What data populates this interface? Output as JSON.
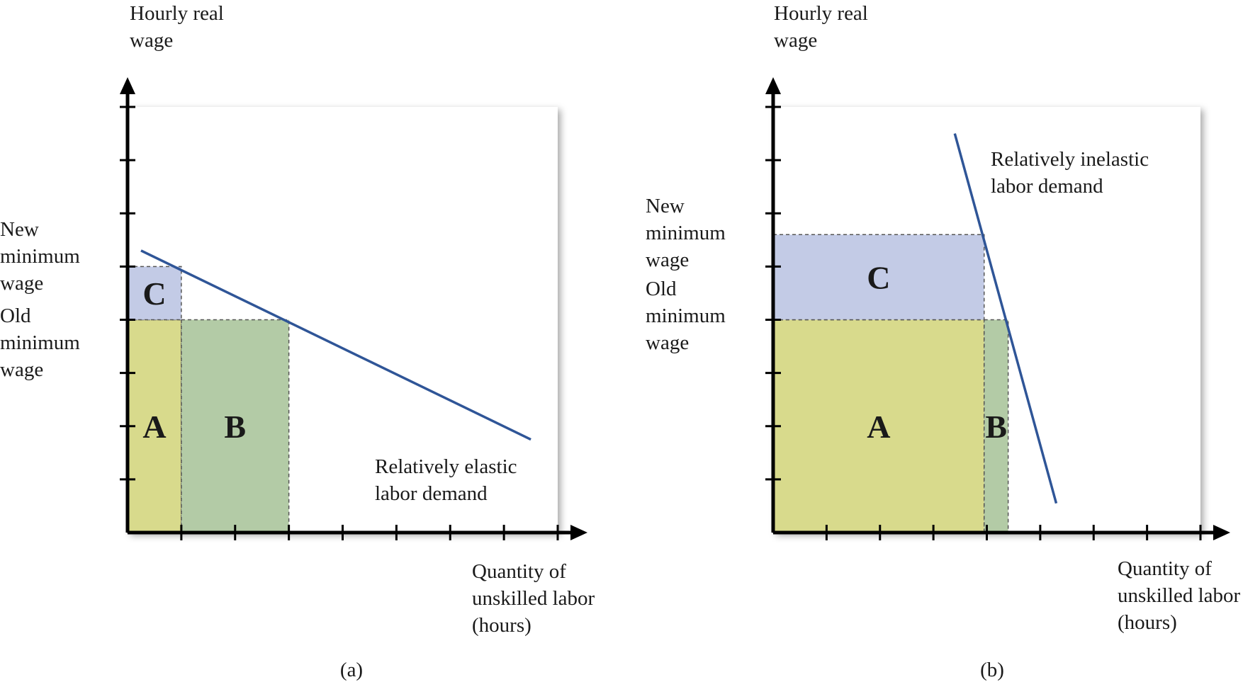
{
  "chart_data": [
    {
      "type": "area",
      "panel_label": "(a)",
      "ylabel": [
        "Hourly real",
        "wage"
      ],
      "xlabel": [
        "Quantity of",
        "unskilled labor",
        "(hours)"
      ],
      "xlim": [
        0,
        8
      ],
      "ylim": [
        0,
        8
      ],
      "x_ticks": 8,
      "y_ticks": 8,
      "new_min_wage": {
        "label": [
          "New",
          "minimum",
          "wage"
        ],
        "value": 5
      },
      "old_min_wage": {
        "label": [
          "Old",
          "minimum",
          "wage"
        ],
        "value": 4
      },
      "demand_curve": {
        "label": [
          "Relatively elastic",
          "labor demand"
        ],
        "x": [
          0.25,
          7.5
        ],
        "y": [
          5.3,
          1.75
        ]
      },
      "regions": [
        {
          "name": "A",
          "x": [
            0,
            1
          ],
          "y": [
            0,
            4
          ],
          "color": "#d8da8c"
        },
        {
          "name": "B",
          "x": [
            1,
            3
          ],
          "y": [
            0,
            4
          ],
          "color": "#b3cba6"
        },
        {
          "name": "C",
          "x": [
            0,
            1
          ],
          "y": [
            4,
            5
          ],
          "color": "#c3cbe6"
        }
      ]
    },
    {
      "type": "area",
      "panel_label": "(b)",
      "ylabel": [
        "Hourly real",
        "wage"
      ],
      "xlabel": [
        "Quantity of",
        "unskilled labor",
        "(hours)"
      ],
      "xlim": [
        0,
        8
      ],
      "ylim": [
        0,
        8
      ],
      "x_ticks": 8,
      "y_ticks": 8,
      "new_min_wage": {
        "label": [
          "New",
          "minimum",
          "wage"
        ],
        "value": 5.6
      },
      "old_min_wage": {
        "label": [
          "Old",
          "minimum",
          "wage"
        ],
        "value": 4
      },
      "demand_curve": {
        "label": [
          "Relatively inelastic",
          "labor demand"
        ],
        "x": [
          3.4,
          5.3
        ],
        "y": [
          7.5,
          0.55
        ]
      },
      "regions": [
        {
          "name": "A",
          "x": [
            0,
            3.95
          ],
          "y": [
            0,
            4
          ],
          "color": "#d8da8c"
        },
        {
          "name": "B",
          "x": [
            3.95,
            4.4
          ],
          "y": [
            0,
            4
          ],
          "color": "#b3cba6"
        },
        {
          "name": "C",
          "x": [
            0,
            3.95
          ],
          "y": [
            4,
            5.6
          ],
          "color": "#c3cbe6"
        }
      ]
    }
  ]
}
